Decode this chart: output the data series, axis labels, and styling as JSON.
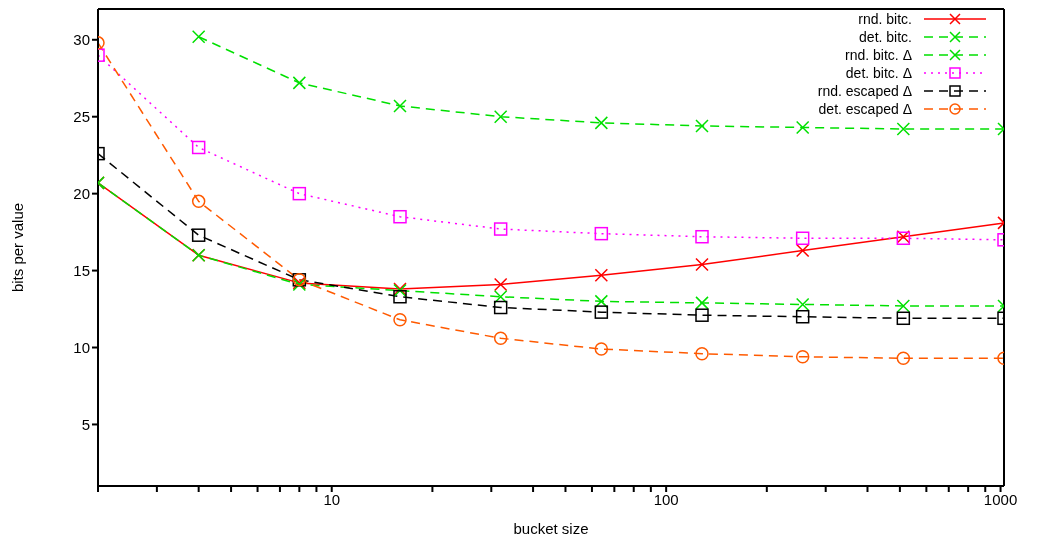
{
  "chart_data": {
    "type": "line",
    "xlabel": "bucket size",
    "ylabel": "bits per value",
    "log": "x",
    "x": [
      2,
      4,
      8,
      16,
      32,
      64,
      128,
      256,
      512,
      1024
    ],
    "xlim": [
      2,
      1024
    ],
    "ylim": [
      1,
      32
    ],
    "xticks": [
      {
        "value": 2,
        "label": null
      },
      {
        "value": 3,
        "label": null
      },
      {
        "value": 4,
        "label": null
      },
      {
        "value": 5,
        "label": null
      },
      {
        "value": 6,
        "label": null
      },
      {
        "value": 7,
        "label": null
      },
      {
        "value": 8,
        "label": null
      },
      {
        "value": 9,
        "label": null
      },
      10,
      {
        "value": 20,
        "label": null
      },
      {
        "value": 30,
        "label": null
      },
      {
        "value": 40,
        "label": null
      },
      {
        "value": 50,
        "label": null
      },
      {
        "value": 60,
        "label": null
      },
      {
        "value": 70,
        "label": null
      },
      {
        "value": 80,
        "label": null
      },
      {
        "value": 90,
        "label": null
      },
      100,
      {
        "value": 200,
        "label": null
      },
      {
        "value": 300,
        "label": null
      },
      {
        "value": 400,
        "label": null
      },
      {
        "value": 500,
        "label": null
      },
      {
        "value": 600,
        "label": null
      },
      {
        "value": 700,
        "label": null
      },
      {
        "value": 800,
        "label": null
      },
      {
        "value": 900,
        "label": null
      },
      1000
    ],
    "yticks": [
      5,
      10,
      15,
      20,
      25,
      30
    ],
    "grid": false,
    "legend": "top right",
    "series": [
      {
        "name": "rnd. bitc.",
        "color": "#ff0000",
        "marker": "cross",
        "line_style": "solid",
        "values": [
          20.7,
          16.0,
          14.2,
          13.8,
          14.1,
          14.7,
          15.4,
          16.3,
          17.2,
          18.1
        ]
      },
      {
        "name": "det. bitc.",
        "color": "#00e000",
        "marker": "cross",
        "line_style": "dashed",
        "values": [
          null,
          30.2,
          27.2,
          25.7,
          25.0,
          24.6,
          24.4,
          24.3,
          24.2,
          24.2
        ]
      },
      {
        "name": "rnd. bitc. Δ",
        "color": "#00e000",
        "marker": "cross",
        "line_style": "dashed",
        "values": [
          20.7,
          16.0,
          14.1,
          13.7,
          13.3,
          13.0,
          12.9,
          12.8,
          12.7,
          12.7
        ]
      },
      {
        "name": "det. bitc. Δ",
        "color": "#ff00ff",
        "marker": "square",
        "line_style": "dotted",
        "values": [
          29.0,
          23.0,
          20.0,
          18.5,
          17.7,
          17.4,
          17.2,
          17.1,
          17.1,
          17.0
        ]
      },
      {
        "name": "rnd. escaped Δ",
        "color": "#000000",
        "marker": "square",
        "line_style": "dashed",
        "values": [
          22.6,
          17.3,
          14.4,
          13.3,
          12.6,
          12.3,
          12.1,
          12.0,
          11.9,
          11.9
        ]
      },
      {
        "name": "det. escaped Δ",
        "color": "#ff5a00",
        "marker": "circle",
        "line_style": "dashed",
        "values": [
          29.8,
          19.5,
          14.4,
          11.8,
          10.6,
          9.9,
          9.6,
          9.4,
          9.3,
          9.3
        ]
      }
    ]
  }
}
